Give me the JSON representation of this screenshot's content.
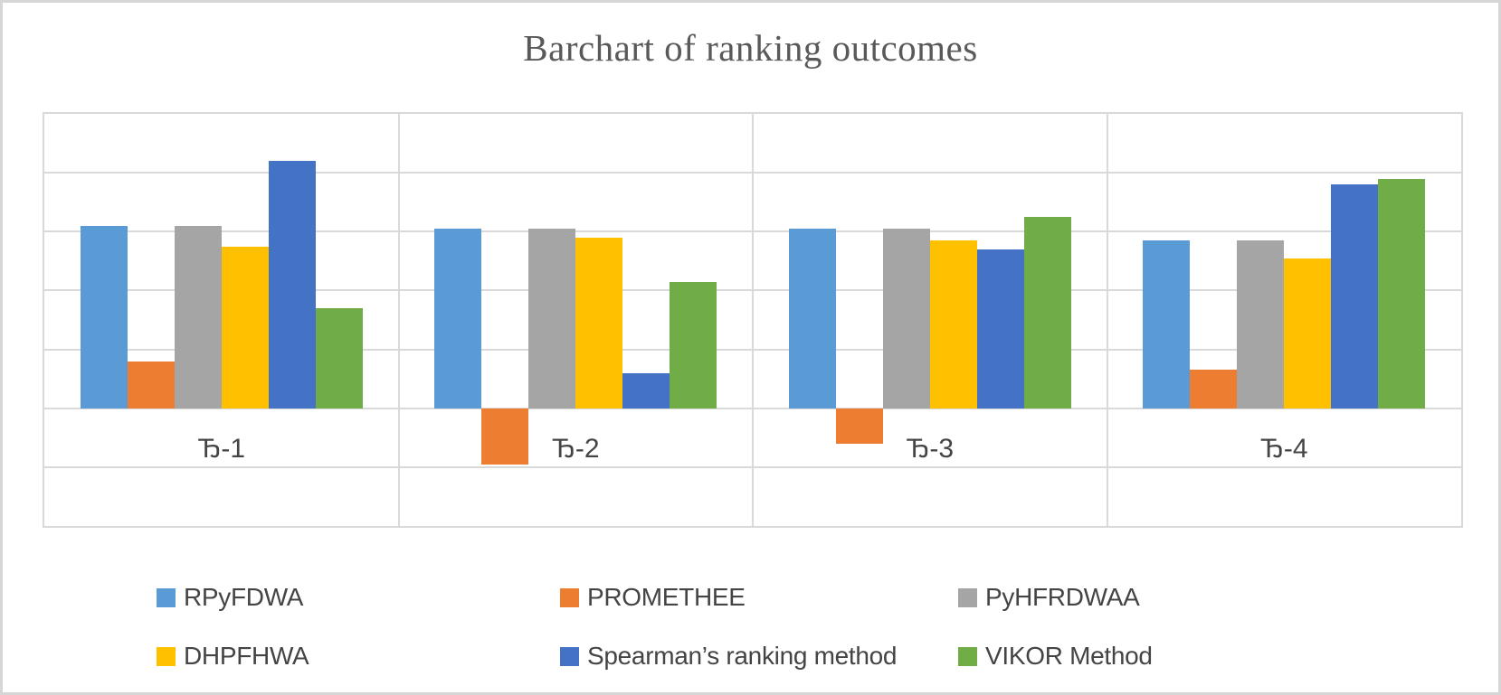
{
  "chart_data": {
    "type": "bar",
    "title": "Barchart of ranking outcomes",
    "categories": [
      "Ђ-1",
      "Ђ-2",
      "Ђ-3",
      "Ђ-4"
    ],
    "series": [
      {
        "name": "RPyFDWA",
        "color": "#5B9BD5",
        "values": [
          3.1,
          3.05,
          3.05,
          2.85
        ]
      },
      {
        "name": "PROMETHEE",
        "color": "#ED7D31",
        "values": [
          0.8,
          -0.95,
          -0.6,
          0.65
        ]
      },
      {
        "name": "PyHFRDWAA",
        "color": "#A5A5A5",
        "values": [
          3.1,
          3.05,
          3.05,
          2.85
        ]
      },
      {
        "name": "DHPFHWA",
        "color": "#FFC000",
        "values": [
          2.75,
          2.9,
          2.85,
          2.55
        ]
      },
      {
        "name": "Spearman’s ranking method",
        "color": "#4472C4",
        "values": [
          4.2,
          0.6,
          2.7,
          3.8
        ]
      },
      {
        "name": "VIKOR Method",
        "color": "#70AD47",
        "values": [
          1.7,
          2.15,
          3.25,
          3.9
        ]
      }
    ],
    "ylim": [
      -2,
      5
    ],
    "gridline_step": 1,
    "grid": true,
    "y_axis_tick_labels": [],
    "xlabel": "",
    "ylabel": "",
    "legend_position": "bottom",
    "legend_rows": 2,
    "panelized_categories": true
  },
  "style_colors": {
    "gridline": "#d9d9d9",
    "plot_border": "#d9d9d9",
    "outer_border": "#d6d6d6",
    "title_text": "#595959",
    "label_text": "#444444",
    "background": "#ffffff"
  }
}
